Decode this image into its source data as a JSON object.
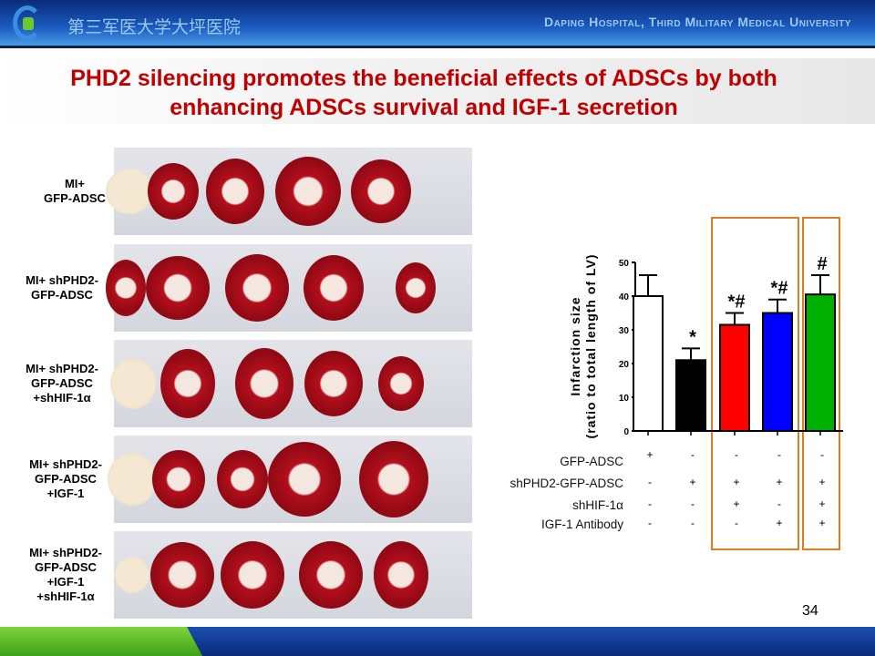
{
  "header": {
    "cn_name": "第三军医大学大坪医院",
    "en_name": "Daping Hospital, Third Military Medical University"
  },
  "title": [
    "PHD2 silencing promotes the beneficial effects of ADSCs by both",
    "enhancing ADSCs survival and IGF-1 secretion"
  ],
  "panels": [
    {
      "label": [
        "MI+",
        "GFP-ADSC"
      ]
    },
    {
      "label": [
        "MI+ shPHD2-",
        "GFP-ADSC"
      ]
    },
    {
      "label": [
        "MI+ shPHD2-",
        "GFP-ADSC",
        "+shHIF-1α"
      ]
    },
    {
      "label": [
        "MI+ shPHD2-",
        "GFP-ADSC",
        "+IGF-1"
      ]
    },
    {
      "label": [
        "MI+ shPHD2-",
        "GFP-ADSC",
        "+IGF-1",
        "+shHIF-1α"
      ]
    }
  ],
  "chart_data": {
    "type": "bar",
    "ylabel": "Infarction size (ratio to total length of LV)",
    "ylabel_lines": [
      "Infarction size",
      "(ratio to total length of LV)"
    ],
    "ylim": [
      0,
      50
    ],
    "yticks": [
      "0",
      "10",
      "20",
      "30",
      "40",
      "50"
    ],
    "values": [
      40,
      21,
      31.5,
      35,
      40.5
    ],
    "error_upper": [
      46.2,
      24.5,
      35,
      39,
      46.2
    ],
    "colors": [
      "#ffffff",
      "#000000",
      "#ff0000",
      "#0000ff",
      "#00b000"
    ],
    "annotations": [
      "",
      "*",
      "*#",
      "*#",
      "#"
    ],
    "conditions": [
      {
        "name": "GFP-ADSC",
        "signs": [
          "+",
          "-",
          "-",
          "-",
          "-"
        ]
      },
      {
        "name": "shPHD2-GFP-ADSC",
        "signs": [
          "-",
          "+",
          "+",
          "+",
          "+"
        ]
      },
      {
        "name": "shHIF-1α",
        "signs": [
          "-",
          "-",
          "+",
          "-",
          "+"
        ]
      },
      {
        "name": "IGF-1 Antibody",
        "signs": [
          "-",
          "-",
          "-",
          "+",
          "+"
        ]
      }
    ]
  },
  "page_number": "34"
}
